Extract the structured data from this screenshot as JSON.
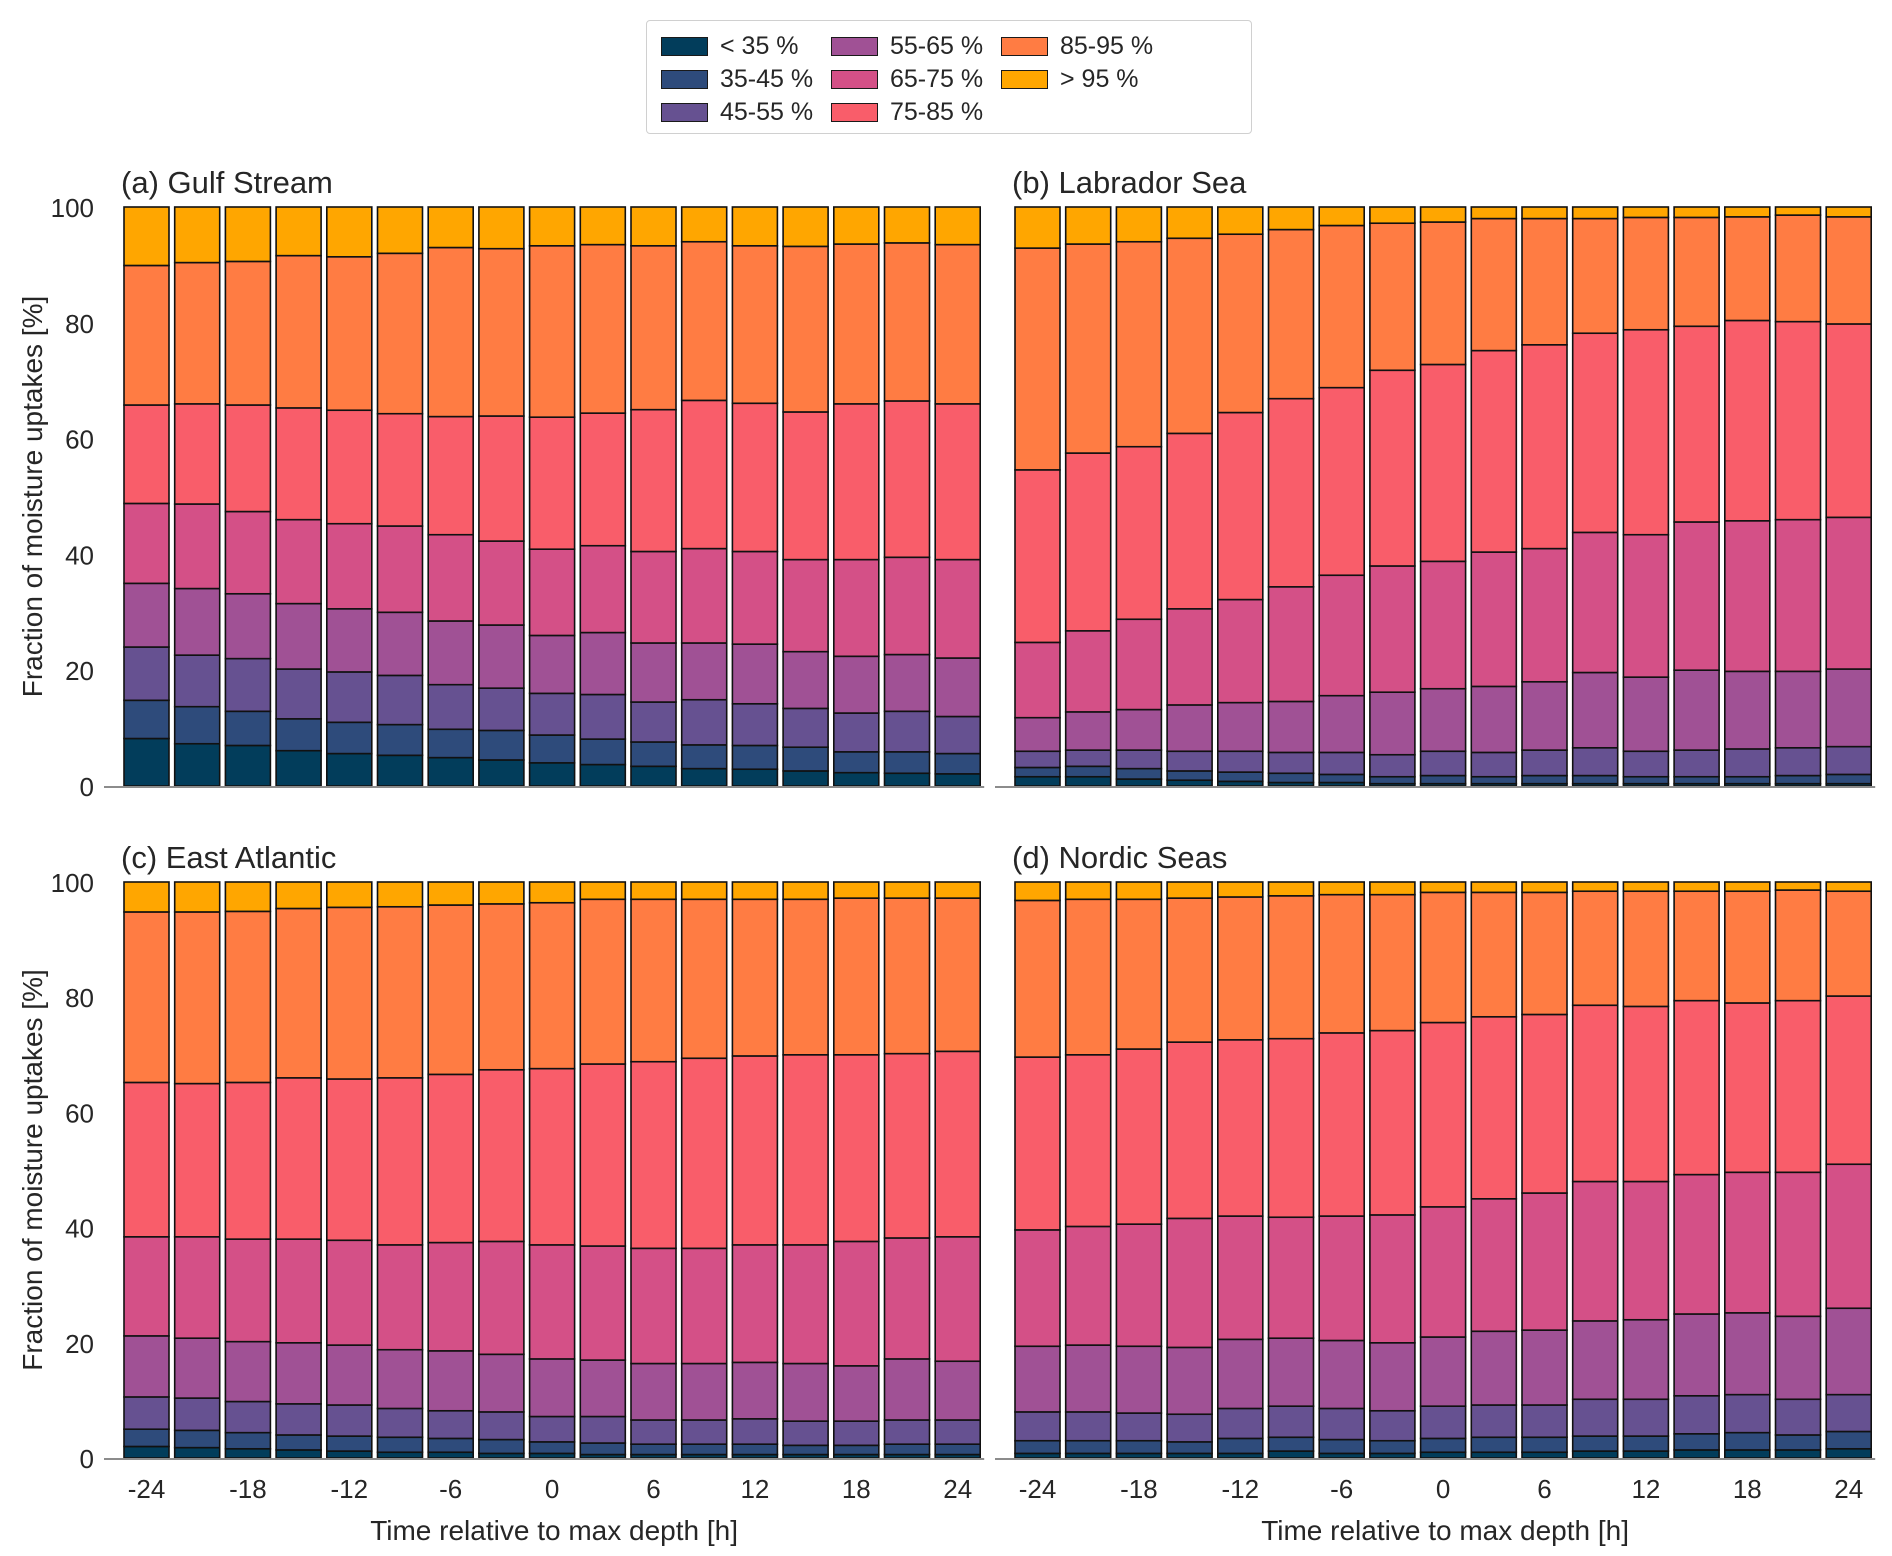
{
  "chart_data": {
    "type": "bar",
    "stacked": true,
    "normalized": true,
    "legend": {
      "placement": "top-center",
      "entries": [
        {
          "label": "< 35 %",
          "color": "#023d5b"
        },
        {
          "label": "35-45 %",
          "color": "#2e4b7b"
        },
        {
          "label": "45-55 %",
          "color": "#665191"
        },
        {
          "label": "55-65 %",
          "color": "#a05195"
        },
        {
          "label": "65-75 %",
          "color": "#d45087"
        },
        {
          "label": "75-85 %",
          "color": "#f95d6a"
        },
        {
          "label": "85-95 %",
          "color": "#ff7c43"
        },
        {
          "label": "> 95 %",
          "color": "#ffa600"
        }
      ]
    },
    "x": [
      -24,
      -21,
      -18,
      -15,
      -12,
      -9,
      -6,
      -3,
      0,
      3,
      6,
      9,
      12,
      15,
      18,
      21,
      24
    ],
    "xticks": [
      "-24",
      "-18",
      "-12",
      "-6",
      "0",
      "6",
      "12",
      "18",
      "24"
    ],
    "xtick_values": [
      -24,
      -18,
      -12,
      -6,
      0,
      6,
      12,
      18,
      24
    ],
    "yticks": [
      "0",
      "20",
      "40",
      "60",
      "80",
      "100"
    ],
    "ytick_values": [
      0,
      20,
      40,
      60,
      80,
      100
    ],
    "ylim": [
      0,
      100
    ],
    "grid": false,
    "panels": [
      {
        "title": "(a) Gulf Stream",
        "ylabel": "Fraction of moisture uptakes [%]",
        "xlabel": "",
        "cumulative": [
          [
            8.2,
            14.8,
            24.0,
            35.0,
            48.8,
            65.8,
            89.9,
            100
          ],
          [
            7.3,
            13.7,
            22.6,
            34.1,
            48.7,
            66.0,
            90.4,
            100
          ],
          [
            7.0,
            12.9,
            22.0,
            33.2,
            47.4,
            65.8,
            90.6,
            100
          ],
          [
            6.1,
            11.6,
            20.2,
            31.5,
            46.0,
            65.3,
            91.6,
            100
          ],
          [
            5.6,
            11.0,
            19.7,
            30.6,
            45.3,
            64.9,
            91.4,
            100
          ],
          [
            5.3,
            10.6,
            19.1,
            30.0,
            44.9,
            64.3,
            92.0,
            100
          ],
          [
            4.9,
            9.8,
            17.5,
            28.5,
            43.4,
            63.8,
            93.0,
            100
          ],
          [
            4.5,
            9.6,
            16.9,
            27.8,
            42.3,
            63.9,
            92.8,
            100
          ],
          [
            4.0,
            8.8,
            16.0,
            26.0,
            40.9,
            63.7,
            93.3,
            100
          ],
          [
            3.7,
            8.1,
            15.8,
            26.5,
            41.5,
            64.4,
            93.5,
            100
          ],
          [
            3.4,
            7.6,
            14.5,
            24.7,
            40.5,
            65.0,
            93.3,
            100
          ],
          [
            3.0,
            7.1,
            14.9,
            24.7,
            41.0,
            66.6,
            94.0,
            100
          ],
          [
            2.9,
            7.0,
            14.2,
            24.5,
            40.5,
            66.1,
            93.3,
            100
          ],
          [
            2.6,
            6.7,
            13.4,
            23.2,
            39.1,
            64.6,
            93.2,
            100
          ],
          [
            2.3,
            5.9,
            12.6,
            22.4,
            39.1,
            66.0,
            93.6,
            100
          ],
          [
            2.2,
            5.9,
            12.9,
            22.7,
            39.5,
            66.5,
            93.8,
            100
          ],
          [
            2.1,
            5.6,
            12.0,
            22.1,
            39.1,
            66.0,
            93.5,
            100
          ]
        ]
      },
      {
        "title": "(b) Labrador Sea",
        "ylabel": "",
        "xlabel": "",
        "cumulative": [
          [
            1.6,
            3.2,
            6.0,
            11.8,
            24.8,
            54.6,
            92.9,
            100
          ],
          [
            1.6,
            3.4,
            6.2,
            12.8,
            26.8,
            57.5,
            93.6,
            100
          ],
          [
            1.2,
            3.0,
            6.2,
            13.2,
            28.8,
            58.6,
            94.0,
            100
          ],
          [
            1.0,
            2.6,
            6.0,
            14.0,
            30.6,
            60.9,
            94.6,
            100
          ],
          [
            0.8,
            2.4,
            6.0,
            14.4,
            32.2,
            64.5,
            95.3,
            100
          ],
          [
            0.6,
            2.2,
            5.8,
            14.6,
            34.4,
            66.9,
            96.1,
            100
          ],
          [
            0.6,
            2.0,
            5.8,
            15.6,
            36.4,
            68.8,
            96.8,
            100
          ],
          [
            0.4,
            1.6,
            5.4,
            16.2,
            38.0,
            71.8,
            97.2,
            100
          ],
          [
            0.4,
            1.8,
            6.0,
            16.8,
            38.8,
            72.8,
            97.4,
            100
          ],
          [
            0.4,
            1.6,
            5.8,
            17.2,
            40.4,
            75.2,
            98.0,
            100
          ],
          [
            0.4,
            1.8,
            6.2,
            18.0,
            41.0,
            76.2,
            98.0,
            100
          ],
          [
            0.4,
            1.8,
            6.6,
            19.6,
            43.8,
            78.2,
            98.0,
            100
          ],
          [
            0.4,
            1.6,
            6.0,
            18.8,
            43.4,
            78.8,
            98.2,
            100
          ],
          [
            0.4,
            1.6,
            6.2,
            20.0,
            45.6,
            79.4,
            98.2,
            100
          ],
          [
            0.4,
            1.6,
            6.4,
            19.8,
            45.8,
            80.4,
            98.3,
            100
          ],
          [
            0.4,
            1.8,
            6.6,
            19.8,
            46.0,
            80.2,
            98.6,
            100
          ],
          [
            0.4,
            2.0,
            6.8,
            20.2,
            46.4,
            79.8,
            98.3,
            100
          ]
        ]
      },
      {
        "title": "(c) East Atlantic",
        "ylabel": "Fraction of moisture uptakes [%]",
        "xlabel": "Time relative to max depth [h]",
        "cumulative": [
          [
            2.0,
            5.0,
            10.6,
            21.2,
            38.4,
            65.2,
            94.8,
            100
          ],
          [
            1.8,
            4.8,
            10.4,
            20.8,
            38.4,
            65.0,
            94.8,
            100
          ],
          [
            1.6,
            4.4,
            9.8,
            20.2,
            38.0,
            65.2,
            94.9,
            100
          ],
          [
            1.4,
            4.0,
            9.4,
            20.0,
            38.0,
            66.0,
            95.4,
            100
          ],
          [
            1.2,
            3.8,
            9.2,
            19.6,
            37.8,
            65.8,
            95.6,
            100
          ],
          [
            1.0,
            3.6,
            8.6,
            18.8,
            37.0,
            66.0,
            95.7,
            100
          ],
          [
            1.0,
            3.4,
            8.2,
            18.6,
            37.4,
            66.6,
            96.0,
            100
          ],
          [
            0.8,
            3.2,
            8.0,
            18.0,
            37.6,
            67.4,
            96.2,
            100
          ],
          [
            0.8,
            2.8,
            7.2,
            17.2,
            37.0,
            67.6,
            96.4,
            100
          ],
          [
            0.6,
            2.6,
            7.2,
            17.0,
            36.8,
            68.4,
            97.0,
            100
          ],
          [
            0.6,
            2.4,
            6.6,
            16.4,
            36.4,
            68.8,
            97.0,
            100
          ],
          [
            0.6,
            2.4,
            6.6,
            16.4,
            36.4,
            69.4,
            97.0,
            100
          ],
          [
            0.6,
            2.4,
            6.8,
            16.6,
            37.0,
            69.8,
            97.0,
            100
          ],
          [
            0.6,
            2.2,
            6.4,
            16.4,
            37.0,
            70.0,
            97.0,
            100
          ],
          [
            0.6,
            2.2,
            6.4,
            16.0,
            37.6,
            70.0,
            97.2,
            100
          ],
          [
            0.6,
            2.4,
            6.6,
            17.2,
            38.2,
            70.2,
            97.2,
            100
          ],
          [
            0.6,
            2.4,
            6.6,
            16.8,
            38.4,
            70.6,
            97.2,
            100
          ]
        ]
      },
      {
        "title": "(d) Nordic Seas",
        "ylabel": "",
        "xlabel": "Time relative to max depth [h]",
        "cumulative": [
          [
            0.8,
            3.0,
            8.0,
            19.4,
            39.6,
            69.6,
            96.8,
            100
          ],
          [
            0.8,
            3.0,
            8.0,
            19.6,
            40.2,
            70.0,
            97.0,
            100
          ],
          [
            0.8,
            3.0,
            7.8,
            19.4,
            40.6,
            71.0,
            97.0,
            100
          ],
          [
            0.8,
            2.8,
            7.6,
            19.2,
            41.6,
            72.2,
            97.2,
            100
          ],
          [
            0.8,
            3.4,
            8.6,
            20.6,
            42.0,
            72.6,
            97.4,
            100
          ],
          [
            1.2,
            3.6,
            9.0,
            20.8,
            41.8,
            72.8,
            97.6,
            100
          ],
          [
            0.8,
            3.2,
            8.6,
            20.4,
            42.0,
            73.8,
            97.8,
            100
          ],
          [
            0.8,
            3.0,
            8.2,
            20.0,
            42.2,
            74.2,
            97.8,
            100
          ],
          [
            1.0,
            3.4,
            9.0,
            21.0,
            43.6,
            75.6,
            98.2,
            100
          ],
          [
            1.0,
            3.6,
            9.2,
            22.0,
            45.0,
            76.6,
            98.2,
            100
          ],
          [
            1.0,
            3.6,
            9.2,
            22.2,
            46.0,
            77.0,
            98.2,
            100
          ],
          [
            1.2,
            3.8,
            10.2,
            23.8,
            48.0,
            78.6,
            98.4,
            100
          ],
          [
            1.2,
            3.8,
            10.2,
            24.0,
            48.0,
            78.4,
            98.4,
            100
          ],
          [
            1.4,
            4.2,
            10.8,
            25.0,
            49.2,
            79.4,
            98.4,
            100
          ],
          [
            1.4,
            4.4,
            11.0,
            25.2,
            49.6,
            79.0,
            98.4,
            100
          ],
          [
            1.4,
            4.0,
            10.2,
            24.6,
            49.6,
            79.4,
            98.6,
            100
          ],
          [
            1.6,
            4.6,
            11.0,
            26.0,
            51.0,
            80.2,
            98.4,
            100
          ]
        ]
      }
    ]
  }
}
